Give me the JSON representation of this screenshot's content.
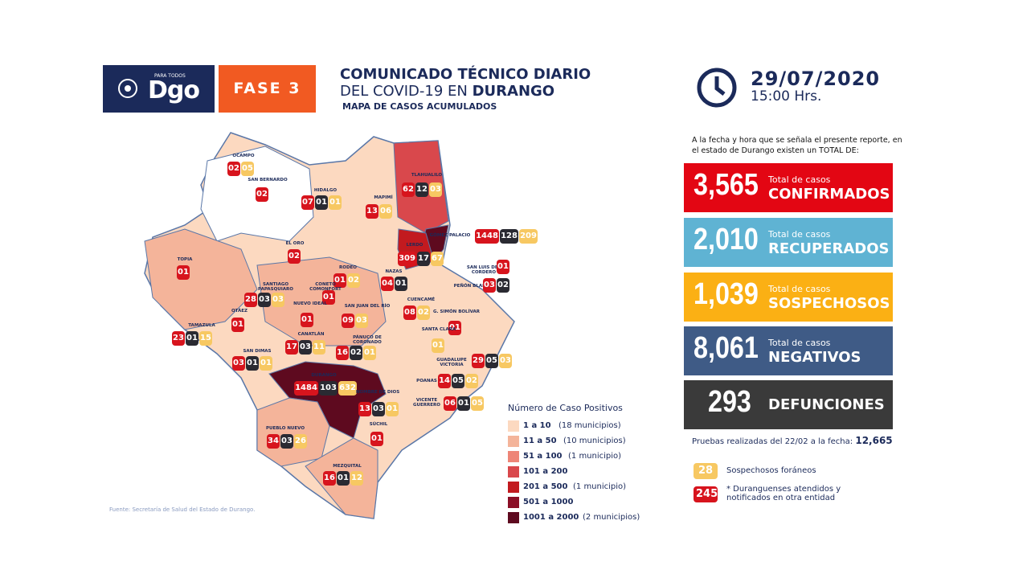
{
  "header": {
    "logo_tagline": "PARA TODOS",
    "logo": "Dgo",
    "phase": "FASE 3",
    "title": "COMUNICADO TÉCNICO DIARIO",
    "subtitle": "DEL COVID-19 EN",
    "subtitle_bold": "DURANGO",
    "caption": "MAPA DE CASOS ACUMULADOS",
    "date": "29/07/2020",
    "time": "15:00 Hrs."
  },
  "intro": "A la fecha y hora que se señala el presente reporte, en el estado de Durango existen un TOTAL DE:",
  "stats": [
    {
      "value": "3,565",
      "small": "Total de casos",
      "label": "CONFIRMADOS"
    },
    {
      "value": "2,010",
      "small": "Total de casos",
      "label": "RECUPERADOS"
    },
    {
      "value": "1,039",
      "small": "Total de casos",
      "label": "SOSPECHOSOS"
    },
    {
      "value": "8,061",
      "small": "Total de casos",
      "label": "NEGATIVOS"
    },
    {
      "value": "293",
      "label": "DEFUNCIONES"
    }
  ],
  "tests": {
    "label": "Pruebas realizadas del 22/02 a la fecha:",
    "value": "12,665"
  },
  "key": [
    {
      "badge": "28",
      "text": "Sospechosos foráneos"
    },
    {
      "badge": "245",
      "text": "* Duranguenses atendidos y notificados en otra entidad"
    }
  ],
  "legend": {
    "title": "Número de Caso Positivos",
    "items": [
      {
        "range": "1 a 10",
        "count": "(18 municipios)"
      },
      {
        "range": "11 a 50",
        "count": "(10 municipios)"
      },
      {
        "range": "51 a 100",
        "count": "(1 municipio)"
      },
      {
        "range": "101 a 200"
      },
      {
        "range": "201 a 500",
        "count": "(1 municipio)"
      },
      {
        "range": "501 a 1000"
      },
      {
        "range": "1001 a 2000",
        "count": "(2 municipios)"
      }
    ]
  },
  "source": "Fuente: Secretaría de Salud del Estado de Durango.",
  "municipalities": [
    {
      "name": "OCAMPO",
      "confirmed": "02",
      "suspected": "05"
    },
    {
      "name": "SAN BERNARDO",
      "confirmed": "02"
    },
    {
      "name": "HIDALGO",
      "confirmed": "07",
      "dark": "01",
      "suspected": "01"
    },
    {
      "name": "MAPIMÍ",
      "confirmed": "13",
      "suspected": "06"
    },
    {
      "name": "TLAHUALILO",
      "confirmed": "62",
      "dark": "12",
      "suspected": "03"
    },
    {
      "name": "GÓMEZ PALACIO",
      "confirmed": "1448",
      "dark": "128",
      "suspected": "209"
    },
    {
      "name": "LERDO",
      "confirmed": "309",
      "dark": "17",
      "suspected": "67"
    },
    {
      "name": "EL ORO",
      "confirmed": "02"
    },
    {
      "name": "TOPIA",
      "confirmed": "01"
    },
    {
      "name": "SANTIAGO PAPASQUIARO",
      "confirmed": "28",
      "dark": "03",
      "suspected": "03"
    },
    {
      "name": "RODEO",
      "confirmed": "01",
      "suspected": "02"
    },
    {
      "name": "NAZAS",
      "confirmed": "04",
      "dark": "01"
    },
    {
      "name": "SAN LUIS DEL CORDERO",
      "confirmed": "01"
    },
    {
      "name": "PEÑÓN BLANCO",
      "confirmed": "03",
      "dark": "02"
    },
    {
      "name": "CONETO COMONFORT",
      "confirmed": "01"
    },
    {
      "name": "NUEVO IDEAL",
      "confirmed": "01"
    },
    {
      "name": "SAN JUAN DEL RÍO",
      "confirmed": "09",
      "suspected": "03"
    },
    {
      "name": "CUENCAMÉ",
      "confirmed": "08",
      "suspected": "02"
    },
    {
      "name": "OTÁEZ",
      "confirmed": "01"
    },
    {
      "name": "TAMAZULA",
      "confirmed": "23",
      "dark": "01",
      "suspected": "15"
    },
    {
      "name": "G. SIMÓN BOLÍVAR",
      "confirmed": "01"
    },
    {
      "name": "CANATLÁN",
      "confirmed": "17",
      "dark": "03",
      "suspected": "11"
    },
    {
      "name": "PÁNUCO DE CORONADO",
      "confirmed": "16",
      "dark": "02",
      "suspected": "01"
    },
    {
      "name": "SANTA CLARA",
      "suspected": "01"
    },
    {
      "name": "GUADALUPE VICTORIA",
      "confirmed": "29",
      "dark": "05",
      "suspected": "03"
    },
    {
      "name": "SAN DIMAS",
      "confirmed": "03",
      "dark": "01",
      "suspected": "01"
    },
    {
      "name": "DURANGO",
      "confirmed": "1484",
      "dark": "103",
      "suspected": "632"
    },
    {
      "name": "POANAS",
      "confirmed": "14",
      "dark": "05",
      "suspected": "02"
    },
    {
      "name": "NOMBRE DE DIOS",
      "confirmed": "13",
      "dark": "03",
      "suspected": "01"
    },
    {
      "name": "VICENTE GUERRERO",
      "confirmed": "06",
      "dark": "01",
      "suspected": "05"
    },
    {
      "name": "PUEBLO NUEVO",
      "confirmed": "34",
      "dark": "03",
      "suspected": "26"
    },
    {
      "name": "SÚCHIL",
      "confirmed": "01"
    },
    {
      "name": "MEZQUITAL",
      "confirmed": "16",
      "dark": "01",
      "suspected": "12"
    }
  ]
}
